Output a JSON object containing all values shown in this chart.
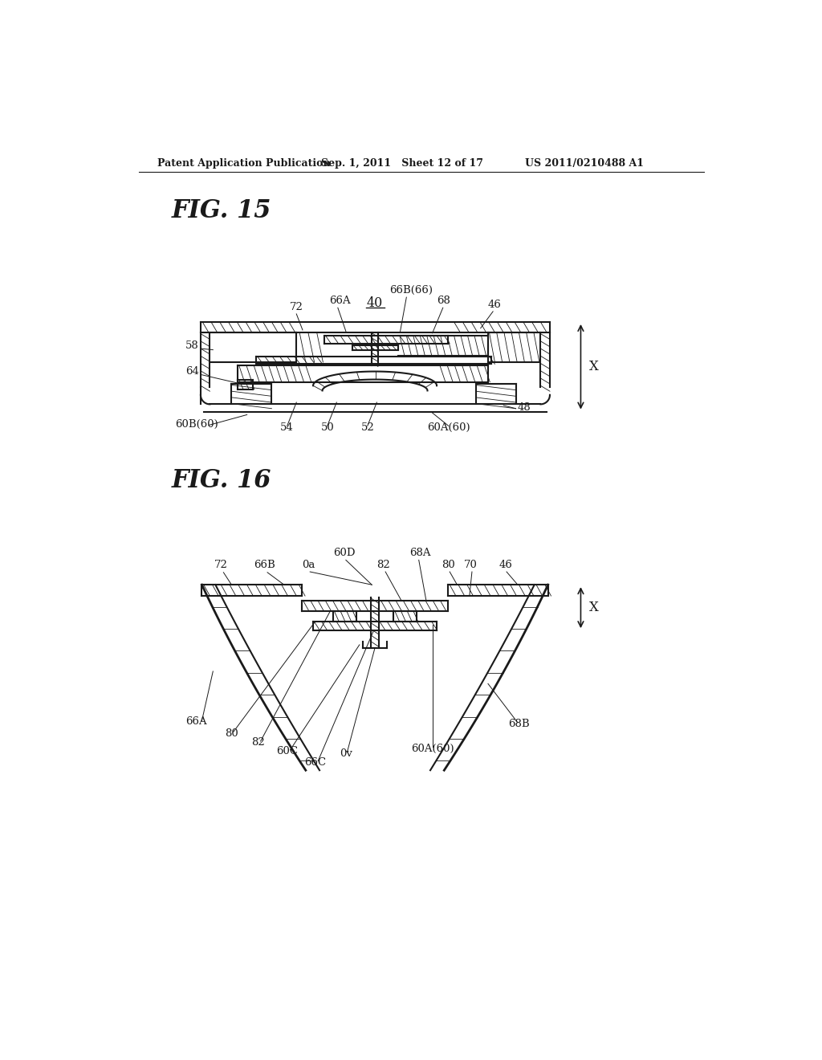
{
  "bg_color": "#ffffff",
  "header_left": "Patent Application Publication",
  "header_mid": "Sep. 1, 2011   Sheet 12 of 17",
  "header_right": "US 2011/0210488 A1",
  "fig15_title": "FIG. 15",
  "fig16_title": "FIG. 16",
  "text_color": "#1a1a1a",
  "line_color": "#1a1a1a"
}
